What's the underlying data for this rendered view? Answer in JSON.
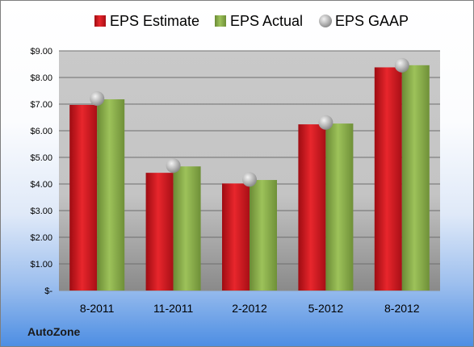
{
  "company": "AutoZone",
  "chart_data": {
    "type": "bar",
    "categories": [
      "8-2011",
      "11-2011",
      "2-2012",
      "5-2012",
      "8-2012"
    ],
    "series": [
      {
        "name": "EPS Estimate",
        "type": "bar",
        "color": "#d7141e",
        "values": [
          6.97,
          4.42,
          4.02,
          6.24,
          8.38
        ]
      },
      {
        "name": "EPS Actual",
        "type": "bar",
        "color": "#8cb14a",
        "values": [
          7.18,
          4.66,
          4.15,
          6.27,
          8.46
        ]
      },
      {
        "name": "EPS GAAP",
        "type": "scatter",
        "color": "#a8a8a8",
        "values": [
          7.21,
          4.69,
          4.17,
          6.31,
          8.46
        ]
      }
    ],
    "y_ticks": [
      "$-",
      "$1.00",
      "$2.00",
      "$3.00",
      "$4.00",
      "$5.00",
      "$6.00",
      "$7.00",
      "$8.00",
      "$9.00"
    ],
    "ylim": [
      0,
      9
    ],
    "grid": true,
    "legend_position": "top"
  }
}
